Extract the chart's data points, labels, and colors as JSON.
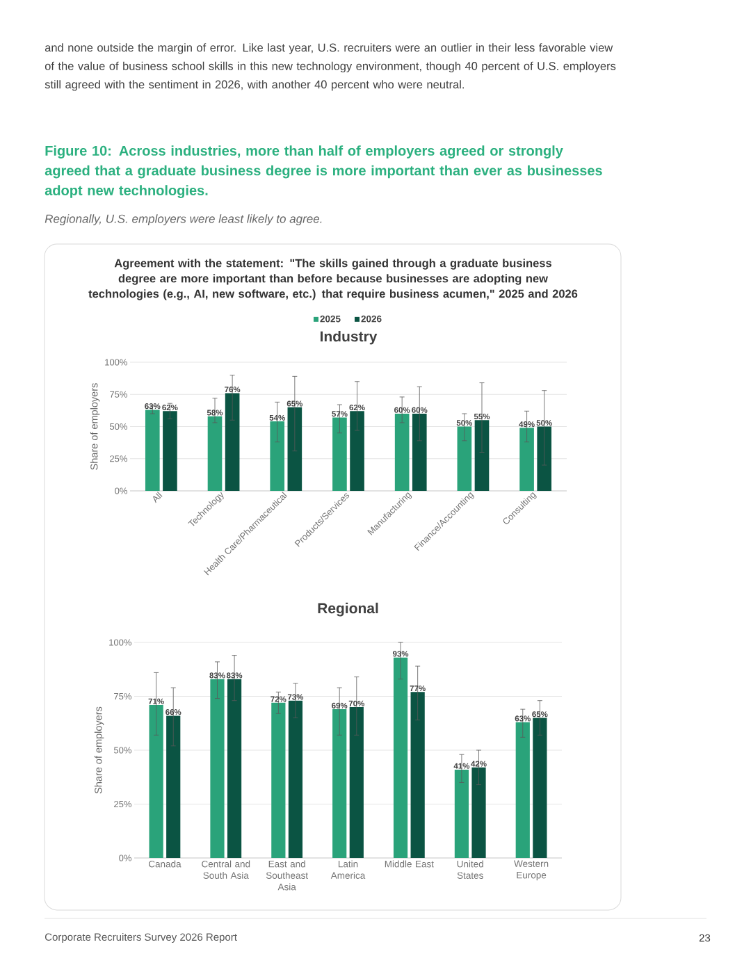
{
  "chart_data": [
    {
      "type": "bar",
      "title": "Industry",
      "categories": [
        "All",
        "Technology",
        "Health Care/Pharmaceutical",
        "Products/Services",
        "Manufacturing",
        "Finance/Accounting",
        "Consulting"
      ],
      "series": [
        {
          "name": "2025",
          "color": "#2aa37a",
          "values": [
            63,
            58,
            54,
            57,
            60,
            50,
            49
          ],
          "errors": [
            [
              60,
              66
            ],
            [
              53,
              72
            ],
            [
              38,
              69
            ],
            [
              45,
              67
            ],
            [
              53,
              73
            ],
            [
              39,
              60
            ],
            [
              38,
              62
            ]
          ],
          "value_labels": [
            "63%",
            "58%",
            "54%",
            "57%",
            "60%",
            "50%",
            "49%"
          ]
        },
        {
          "name": "2026",
          "color": "#0b5443",
          "values": [
            62,
            76,
            65,
            62,
            60,
            55,
            50
          ],
          "errors": [
            [
              56,
              68
            ],
            [
              55,
              90
            ],
            [
              31,
              89
            ],
            [
              47,
              85
            ],
            [
              39,
              81
            ],
            [
              30,
              84
            ],
            [
              20,
              78
            ]
          ],
          "value_labels": [
            "62%",
            "76%",
            "65%",
            "62%",
            "60%",
            "55%",
            "50%"
          ]
        }
      ],
      "ylim": [
        0,
        100
      ],
      "yticks": [
        {
          "value": 0,
          "label": "0%"
        },
        {
          "value": 25,
          "label": "25%"
        },
        {
          "value": 50,
          "label": "50%"
        },
        {
          "value": 75,
          "label": "75%"
        },
        {
          "value": 100,
          "label": "100%"
        }
      ],
      "ylabel": "Share of employers",
      "grid": "y",
      "legend": "top",
      "annotations": [
        "and none outside the margin of error. Like last year, U.S. recruiters were an outlier in their less favorable view of the value of business school skills in this new technology environment, though 40 percent of U.S. employers still agreed with the sentiment in 2026, with another 40 percent who were neutral.",
        "Figure 10: Across industries, more than half of employers agreed or strongly agreed that a graduate business degree is more important than ever as businesses adopt new technologies.",
        "Regionally, U.S. employers were least likely to agree.",
        "Agreement with the statement: \"The skills gained through a graduate business degree are more important than before because businesses are adopting new technologies (e.g., AI, new software, etc.) that require business acumen,\" 2025 and 2026"
      ]
    },
    {
      "type": "bar",
      "title": "Regional",
      "categories": [
        "Canada",
        "Central and South Asia",
        "East and Southeast Asia",
        "Latin America",
        "Middle East",
        "United States",
        "Western Europe"
      ],
      "series": [
        {
          "color": "#2aa37a",
          "values": [
            71,
            83,
            72,
            69,
            93,
            41,
            63
          ],
          "errors": [
            [
              57,
              86
            ],
            [
              74,
              91
            ],
            [
              67,
              77
            ],
            [
              57,
              79
            ],
            [
              83,
              100
            ],
            [
              35,
              48
            ],
            [
              56,
              69
            ]
          ],
          "value_labels": [
            "71%",
            "83%",
            "72%",
            "69%",
            "93%",
            "41%",
            "63%"
          ]
        },
        {
          "color": "#0b5443",
          "values": [
            66,
            83,
            73,
            70,
            77,
            42,
            65
          ],
          "errors": [
            [
              52,
              79
            ],
            [
              73,
              94
            ],
            [
              65,
              81
            ],
            [
              57,
              84
            ],
            [
              64,
              89
            ],
            [
              34,
              50
            ],
            [
              57,
              73
            ]
          ],
          "value_labels": [
            "66%",
            "83%",
            "73%",
            "70%",
            "77%",
            "42%",
            "65%"
          ]
        }
      ],
      "ylim": [
        0,
        100
      ],
      "yticks": [
        {
          "value": 0,
          "label": "0%"
        },
        {
          "value": 25,
          "label": "25%"
        },
        {
          "value": 50,
          "label": "50%"
        },
        {
          "value": 75,
          "label": "75%"
        },
        {
          "value": 100,
          "label": "100%"
        }
      ],
      "ylabel": "Share of employers",
      "grid": "y",
      "annotations": [
        "Corporate Recruiters Survey 2026 Report",
        "23"
      ]
    }
  ]
}
